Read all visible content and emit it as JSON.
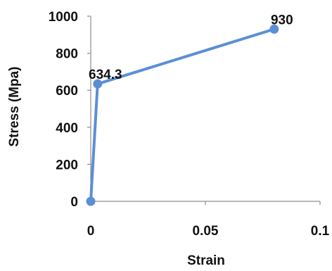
{
  "chart_data": {
    "type": "line",
    "title": "",
    "xlabel": "Strain",
    "ylabel": "Stress (Mpa)",
    "xlim": [
      0,
      0.1
    ],
    "ylim": [
      0,
      1000
    ],
    "x_ticks": [
      "0",
      "0.05",
      "0.1"
    ],
    "y_ticks": [
      "0",
      "200",
      "400",
      "600",
      "800",
      "1000"
    ],
    "x_tick_values": [
      0,
      0.05,
      0.1
    ],
    "y_tick_values": [
      0,
      200,
      400,
      600,
      800,
      1000
    ],
    "grid": false,
    "legend": "none",
    "series": [
      {
        "color": "#5b8fd5",
        "x": [
          0,
          0.003,
          0.08
        ],
        "y": [
          0,
          634.3,
          930
        ],
        "data_labels": [
          "",
          "634.3",
          "930"
        ]
      }
    ]
  }
}
